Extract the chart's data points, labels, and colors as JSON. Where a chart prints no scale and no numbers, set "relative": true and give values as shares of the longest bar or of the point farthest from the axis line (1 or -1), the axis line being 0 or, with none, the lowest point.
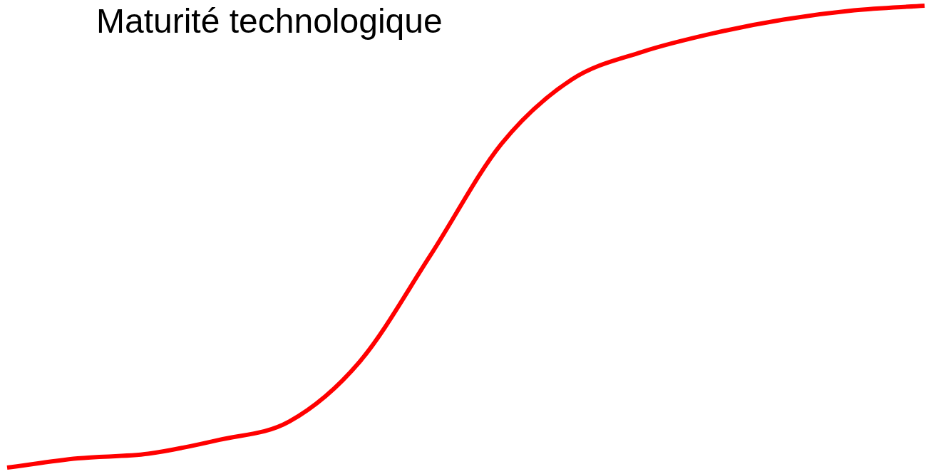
{
  "chart_data": {
    "type": "line",
    "title": "Maturité technologique",
    "relative": true,
    "categories": [
      null,
      null,
      null,
      null,
      null,
      null,
      null,
      null,
      null,
      null,
      null,
      null,
      null,
      null
    ],
    "series": [
      {
        "color": "#ff0000",
        "values": [
          0,
          0.02,
          0.03,
          0.06,
          0.1,
          0.23,
          0.46,
          0.7,
          0.84,
          0.9,
          0.94,
          0.97,
          0.99,
          1
        ]
      }
    ],
    "legend": false,
    "marker": "none",
    "line_style": "solid"
  }
}
